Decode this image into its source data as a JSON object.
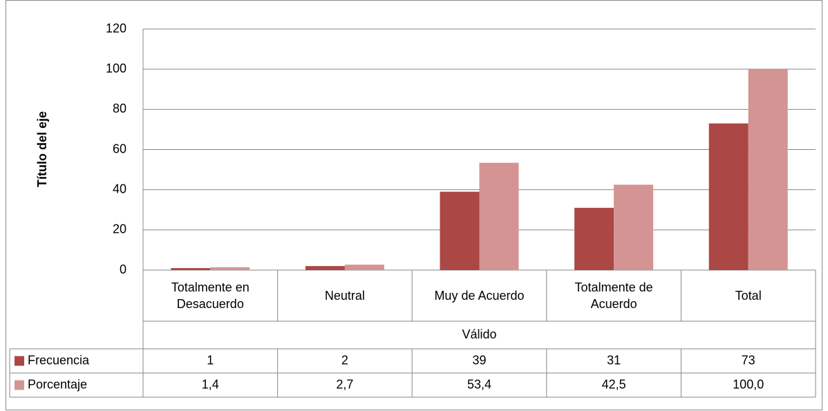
{
  "chart_data": {
    "type": "bar",
    "y_label": "Título del eje",
    "group_label": "Válido",
    "categories": [
      "Totalmente en Desacuerdo",
      "Neutral",
      "Muy de Acuerdo",
      "Totalmente de Acuerdo",
      "Total"
    ],
    "series": [
      {
        "name": "Frecuencia",
        "color": "#ab4744",
        "values": [
          1,
          2,
          39,
          31,
          73
        ]
      },
      {
        "name": "Porcentaje",
        "color": "#d49493",
        "values": [
          1.4,
          2.7,
          53.4,
          42.5,
          100
        ],
        "value_labels": [
          "1,4",
          "2,7",
          "53,4",
          "42,5",
          "100,0"
        ]
      }
    ],
    "ylim": [
      0,
      120
    ],
    "yticks": [
      0,
      20,
      40,
      60,
      80,
      100,
      120
    ],
    "grid": true
  }
}
